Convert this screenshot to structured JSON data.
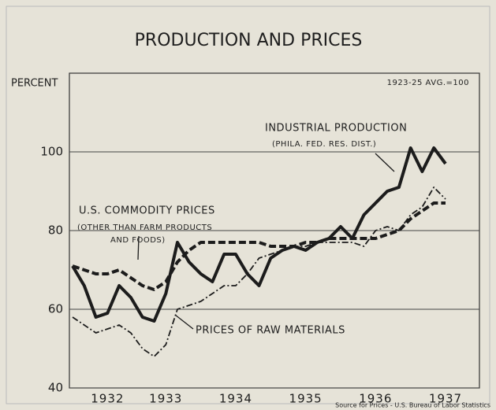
{
  "chart_data": {
    "type": "line",
    "title": "PRODUCTION AND PRICES",
    "y_label": "PERCENT",
    "note": "1923-25 AVG.=100",
    "source": "Source for Prices - U.S. Bureau of Labor Statistics",
    "annotations": [
      "(PHILA. FED. RES. DIST.)",
      "(OTHER THAN FARM PRODUCTS",
      "AND FOODS)"
    ],
    "categories": [
      null,
      null,
      null,
      "1932",
      null,
      null,
      null,
      null,
      "1933",
      null,
      null,
      null,
      null,
      null,
      "1934",
      null,
      null,
      null,
      null,
      null,
      "1935",
      null,
      null,
      null,
      null,
      null,
      "1936",
      null,
      null,
      null,
      null,
      null,
      "1937"
    ],
    "series": [
      {
        "name": "INDUSTRIAL PRODUCTION",
        "color": "#1c1c1c",
        "line_style": "solid",
        "line_width": 4,
        "values": [
          71,
          66,
          58,
          59,
          66,
          63,
          58,
          57,
          64,
          77,
          72,
          69,
          67,
          74,
          74,
          69,
          66,
          73,
          75,
          76,
          75,
          77,
          78,
          81,
          78,
          84,
          87,
          90,
          91,
          101,
          95,
          101,
          97
        ]
      },
      {
        "name": "U.S. COMMODITY PRICES",
        "color": "#1c1c1c",
        "line_style": "dashed",
        "line_width": 4,
        "values": [
          71,
          70,
          69,
          69,
          70,
          68,
          66,
          65,
          67,
          72,
          75,
          77,
          77,
          77,
          77,
          77,
          77,
          76,
          76,
          76,
          77,
          77,
          78,
          78,
          78,
          78,
          78,
          79,
          80,
          83,
          85,
          87,
          87
        ]
      },
      {
        "name": "PRICES OF RAW MATERIALS",
        "color": "#1c1c1c",
        "line_style": "dashdot",
        "line_width": 1.8,
        "values": [
          58,
          56,
          54,
          55,
          56,
          54,
          50,
          48,
          51,
          60,
          61,
          62,
          64,
          66,
          66,
          69,
          73,
          74,
          75,
          76,
          76,
          77,
          77,
          77,
          77,
          76,
          80,
          81,
          80,
          84,
          86,
          91,
          88
        ]
      }
    ],
    "ylim": [
      40,
      120
    ],
    "yticks": [
      40,
      60,
      80,
      100
    ],
    "grid": true
  }
}
